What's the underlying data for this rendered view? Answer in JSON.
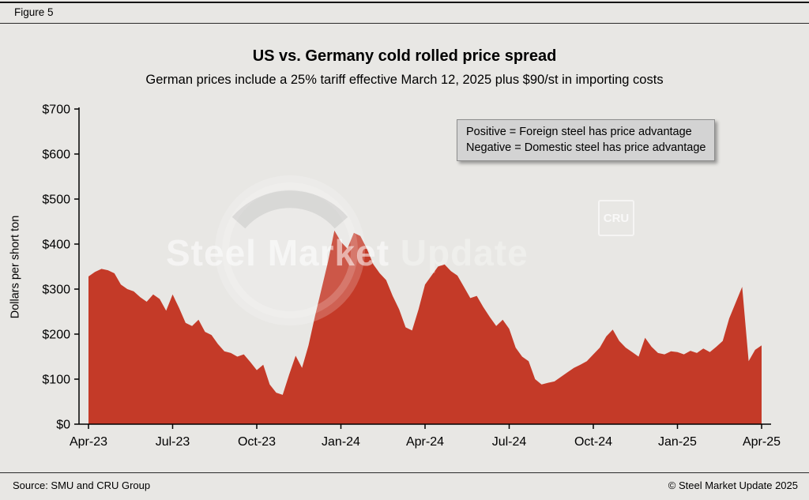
{
  "figure_label": "Figure 5",
  "legend": {
    "line1": "Positive = Foreign steel has price advantage",
    "line2": "Negative = Domestic steel has price advantage"
  },
  "watermark": {
    "text_primary": "Steel Market",
    "text_secondary": " Update",
    "cru": "CRU"
  },
  "footer": {
    "source": "Source: SMU and CRU Group",
    "copyright": "© Steel Market Update 2025"
  },
  "chart_data": {
    "type": "area",
    "title": "US vs. Germany cold rolled price spread",
    "subtitle": "German prices include a 25% tariff effective March 12, 2025 plus $90/st in importing costs",
    "ylabel": "Dollars per short ton",
    "xlabel": "",
    "ylim": [
      0,
      700
    ],
    "ytick_step": 100,
    "ytick_labels": [
      "$0",
      "$100",
      "$200",
      "$300",
      "$400",
      "$500",
      "$600",
      "$700"
    ],
    "x_tick_labels": [
      "Apr-23",
      "Jul-23",
      "Oct-23",
      "Jan-24",
      "Apr-24",
      "Jul-24",
      "Oct-24",
      "Jan-25",
      "Apr-25"
    ],
    "x_tick_indices": [
      0,
      13,
      26,
      39,
      52,
      65,
      78,
      91,
      104
    ],
    "x_frequency": "weekly",
    "grid": false,
    "legend_position": "top-right",
    "fill_color": "#c43a28",
    "values": [
      328,
      338,
      345,
      342,
      335,
      310,
      300,
      295,
      282,
      272,
      288,
      278,
      252,
      288,
      258,
      225,
      218,
      232,
      205,
      198,
      178,
      162,
      158,
      150,
      155,
      138,
      120,
      132,
      88,
      70,
      65,
      110,
      152,
      125,
      175,
      240,
      300,
      360,
      430,
      405,
      390,
      425,
      418,
      390,
      355,
      335,
      320,
      285,
      255,
      215,
      208,
      255,
      310,
      330,
      350,
      355,
      340,
      330,
      305,
      280,
      285,
      260,
      238,
      218,
      232,
      212,
      170,
      150,
      140,
      100,
      88,
      92,
      95,
      105,
      115,
      125,
      132,
      140,
      155,
      170,
      195,
      210,
      185,
      170,
      160,
      150,
      192,
      172,
      158,
      155,
      162,
      160,
      155,
      163,
      158,
      168,
      160,
      172,
      185,
      235,
      270,
      305,
      140,
      165,
      175
    ]
  }
}
